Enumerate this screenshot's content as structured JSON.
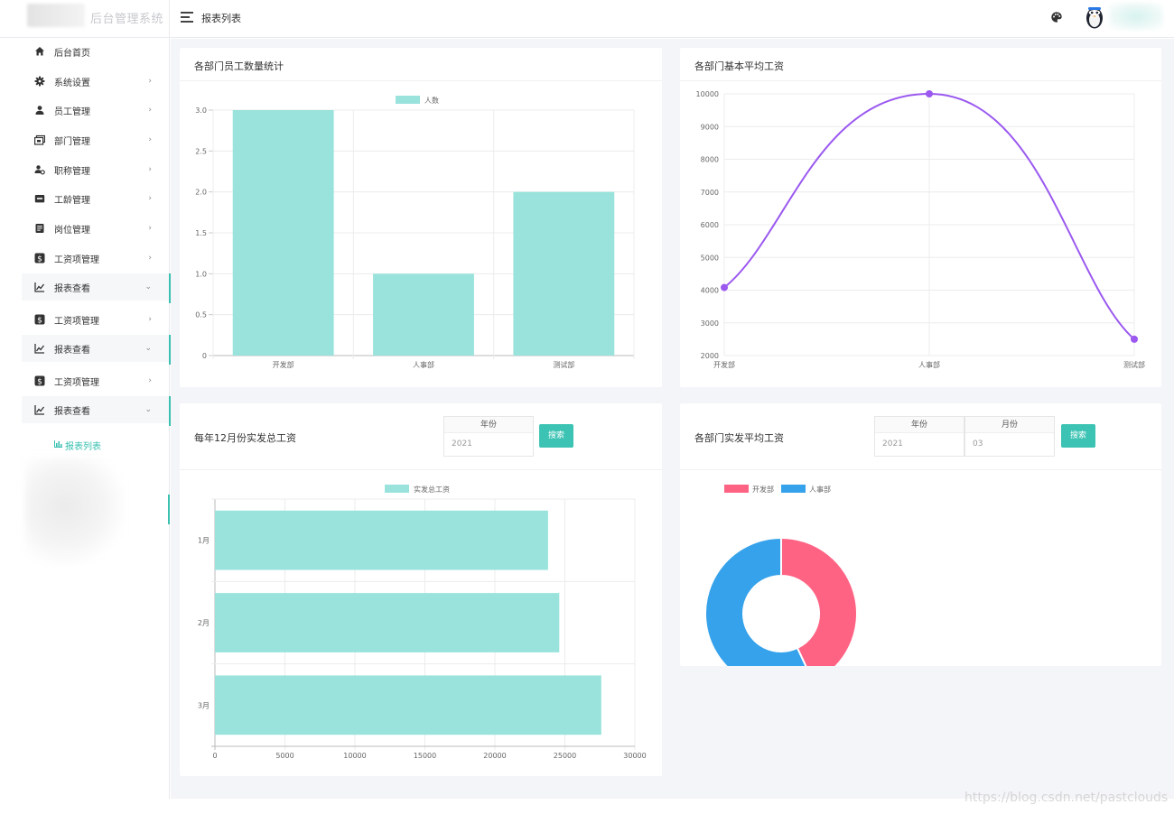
{
  "app": {
    "title": "后台管理系统"
  },
  "header": {
    "breadcrumb": "报表列表"
  },
  "sidebar": {
    "items": [
      {
        "label": "后台首页",
        "icon": "home-icon"
      },
      {
        "label": "系统设置",
        "icon": "gear-icon"
      },
      {
        "label": "员工管理",
        "icon": "user-icon"
      },
      {
        "label": "部门管理",
        "icon": "department-icon"
      },
      {
        "label": "职称管理",
        "icon": "user-cog-icon"
      },
      {
        "label": "工龄管理",
        "icon": "inbox-icon"
      },
      {
        "label": "岗位管理",
        "icon": "document-icon"
      },
      {
        "label": "工资项管理",
        "icon": "dollar-icon"
      },
      {
        "label": "报表查看",
        "icon": "chart-icon"
      },
      {
        "label": "工资项管理",
        "icon": "dollar-icon"
      },
      {
        "label": "报表查看",
        "icon": "chart-icon"
      },
      {
        "label": "工资项管理",
        "icon": "dollar-icon"
      },
      {
        "label": "报表查看",
        "icon": "chart-icon"
      }
    ],
    "active_sub": "报表列表"
  },
  "cards": {
    "emp_count": {
      "title": "各部门员工数量统计"
    },
    "base_salary": {
      "title": "各部门基本平均工资"
    },
    "dec_total": {
      "title": "每年12月份实发总工资",
      "year_label": "年份",
      "year_value": "2021",
      "search_label": "搜索"
    },
    "dept_avg": {
      "title": "各部门实发平均工资",
      "year_label": "年份",
      "year_value": "2021",
      "month_label": "月份",
      "month_value": "03",
      "search_label": "搜索"
    }
  },
  "chart_data": [
    {
      "type": "bar",
      "categories": [
        "开发部",
        "人事部",
        "测试部"
      ],
      "series": [
        {
          "name": "人数",
          "values": [
            3,
            1,
            2
          ]
        }
      ],
      "ylim": [
        0,
        3
      ],
      "yticks": [
        "0",
        "0.5",
        "1.0",
        "1.5",
        "2.0",
        "2.5",
        "3.0"
      ],
      "color": "#99e3dc",
      "legend": "top"
    },
    {
      "type": "line",
      "categories": [
        "开发部",
        "人事部",
        "测试部"
      ],
      "values": [
        4080,
        10000,
        2500
      ],
      "ylim": [
        2000,
        10000
      ],
      "yticks": [
        "2000",
        "3000",
        "4000",
        "5000",
        "6000",
        "7000",
        "8000",
        "9000",
        "10000"
      ],
      "color": "#9b59f0",
      "smooth": true
    },
    {
      "type": "bar",
      "orientation": "horizontal",
      "categories": [
        "1月",
        "2月",
        "3月"
      ],
      "series": [
        {
          "name": "实发总工资",
          "values": [
            23800,
            24600,
            27600
          ]
        }
      ],
      "xlim": [
        0,
        30000
      ],
      "xticks": [
        "0",
        "5000",
        "10000",
        "15000",
        "20000",
        "25000",
        "30000"
      ],
      "color": "#99e3dc",
      "legend": "top"
    },
    {
      "type": "pie",
      "donut": true,
      "labels": [
        "开发部",
        "人事部"
      ],
      "values": [
        43,
        57
      ],
      "colors": [
        "#ff6384",
        "#36a2eb"
      ],
      "legend": "top-left"
    }
  ],
  "watermark": "https://blog.csdn.net/pastclouds"
}
